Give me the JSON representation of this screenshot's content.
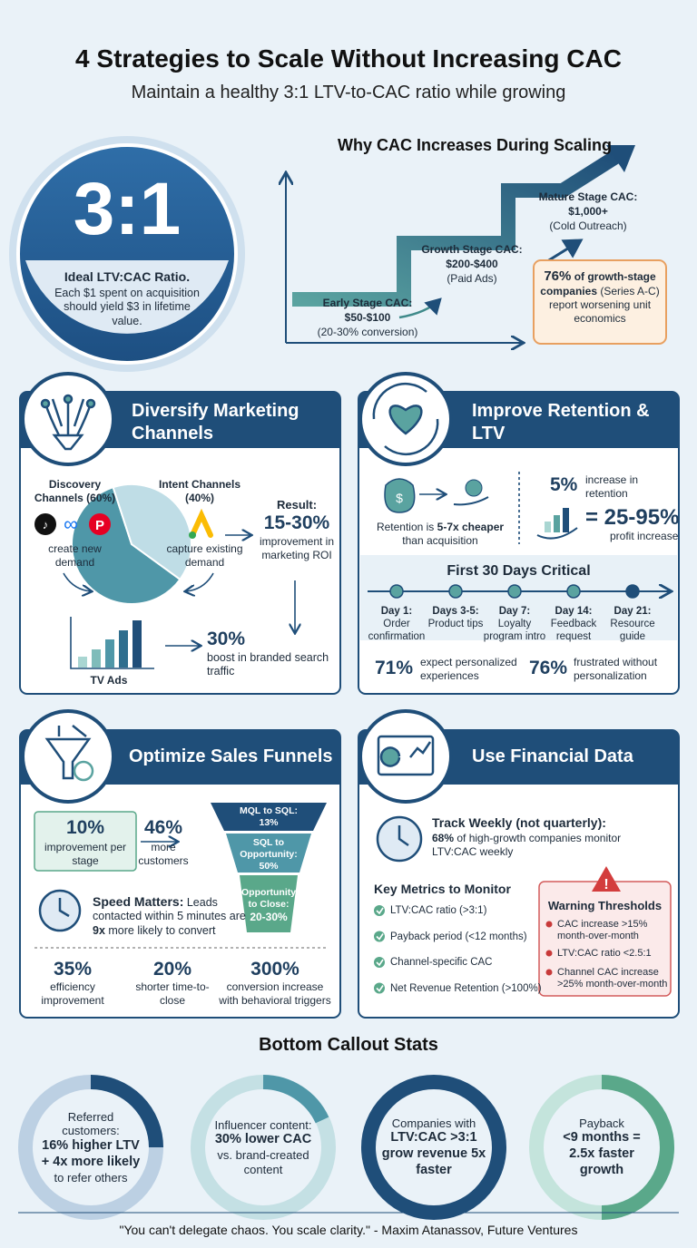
{
  "header": {
    "title": "4 Strategies to Scale Without Increasing CAC",
    "subtitle": "Maintain a healthy 3:1 LTV-to-CAC ratio while growing"
  },
  "hero": {
    "ratio": "3:1",
    "label": "Ideal LTV:CAC Ratio.",
    "text": "Each $1 spent on acquisition should yield $3 in lifetime value."
  },
  "cac": {
    "title": "Why CAC Increases During Scaling",
    "stages": [
      {
        "name": "Early Stage CAC:",
        "value": "$50-$100",
        "note": "(20-30% conversion)"
      },
      {
        "name": "Growth Stage CAC:",
        "value": "$200-$400",
        "note": "(Paid Ads)"
      },
      {
        "name": "Mature Stage CAC:",
        "value": "$1,000+",
        "note": "(Cold Outreach)"
      }
    ],
    "callout": {
      "stat": "76%",
      "bold": "of growth-stage companies",
      "text": "(Series A-C) report worsening unit economics"
    }
  },
  "diversify": {
    "title": "Diversify Marketing Channels",
    "discovery": {
      "label": "Discovery Channels (60%)",
      "text": "create new demand"
    },
    "intent": {
      "label": "Intent Channels (40%)",
      "text": "capture existing demand"
    },
    "pie": {
      "values": [
        60,
        40
      ],
      "colors": [
        "#4f97a8",
        "#bfdde6"
      ]
    },
    "result": {
      "label": "Result:",
      "stat": "15-30%",
      "text": "improvement in marketing ROI"
    },
    "tv": {
      "label": "TV Ads",
      "stat": "30%",
      "text": "boost in branded search traffic"
    }
  },
  "retention": {
    "title": "Improve Retention & LTV",
    "cheaper": {
      "pre": "Retention is",
      "bold": "5-7x cheaper",
      "post": "than acquisition"
    },
    "increase": {
      "stat": "5%",
      "text": "increase in retention"
    },
    "profit": {
      "stat": "= 25-95%",
      "text": "profit increase"
    },
    "timeline": {
      "title": "First 30 Days Critical",
      "steps": [
        {
          "day": "Day 1:",
          "text": "Order confirmation"
        },
        {
          "day": "Days 3-5:",
          "text": "Product tips"
        },
        {
          "day": "Day 7:",
          "text": "Loyalty program intro"
        },
        {
          "day": "Day 14:",
          "text": "Feedback request"
        },
        {
          "day": "Day 21:",
          "text": "Resource guide"
        }
      ]
    },
    "stats": [
      {
        "stat": "71%",
        "text": "expect personalized experiences"
      },
      {
        "stat": "76%",
        "text": "frustrated without personalization"
      }
    ]
  },
  "funnel": {
    "title": "Optimize Sales Funnels",
    "improve": {
      "stat": "10%",
      "text": "improvement per stage"
    },
    "customers": {
      "stat": "46%",
      "text": "more customers"
    },
    "stages": [
      {
        "label": "MQL to SQL:",
        "value": "13%"
      },
      {
        "label": "SQL to Opportunity:",
        "value": "50%"
      },
      {
        "label": "Opportunity to Close:",
        "value": "20-30%"
      }
    ],
    "speed": {
      "bold": "Speed Matters:",
      "text": "Leads contacted within 5 minutes are",
      "bold2": "9x",
      "text2": "more likely to convert"
    },
    "stats": [
      {
        "stat": "35%",
        "text": "efficiency improvement"
      },
      {
        "stat": "20%",
        "text": "shorter time-to-close"
      },
      {
        "stat": "300%",
        "text": "conversion increase with behavioral triggers"
      }
    ]
  },
  "financial": {
    "title": "Use Financial Data",
    "track": {
      "title": "Track Weekly (not quarterly):",
      "stat": "68%",
      "text": "of high-growth companies monitor LTV:CAC weekly"
    },
    "metrics": {
      "title": "Key Metrics to Monitor",
      "items": [
        "LTV:CAC ratio (>3:1)",
        "Payback period (<12 months)",
        "Channel-specific CAC",
        "Net Revenue Retention (>100%)"
      ]
    },
    "warning": {
      "title": "Warning Thresholds",
      "items": [
        "CAC increase >15% month-over-month",
        "LTV:CAC ratio <2.5:1",
        "Channel CAC increase >25% month-over-month"
      ]
    }
  },
  "bottom": {
    "title": "Bottom Callout Stats",
    "items": [
      {
        "pre": "Referred customers:",
        "bold": "16% higher LTV + 4x more likely",
        "post": "to refer others"
      },
      {
        "pre": "Influencer content:",
        "bold": "30% lower CAC",
        "post": "vs. brand-created content"
      },
      {
        "pre": "Companies with",
        "bold": "LTV:CAC >3:1 grow revenue 5x faster"
      },
      {
        "pre": "Payback",
        "bold": "<9 months = 2.5x faster growth"
      }
    ]
  },
  "quote": "\"You can't delegate chaos. You scale clarity.\" - Maxim Atanassov, Future Ventures"
}
